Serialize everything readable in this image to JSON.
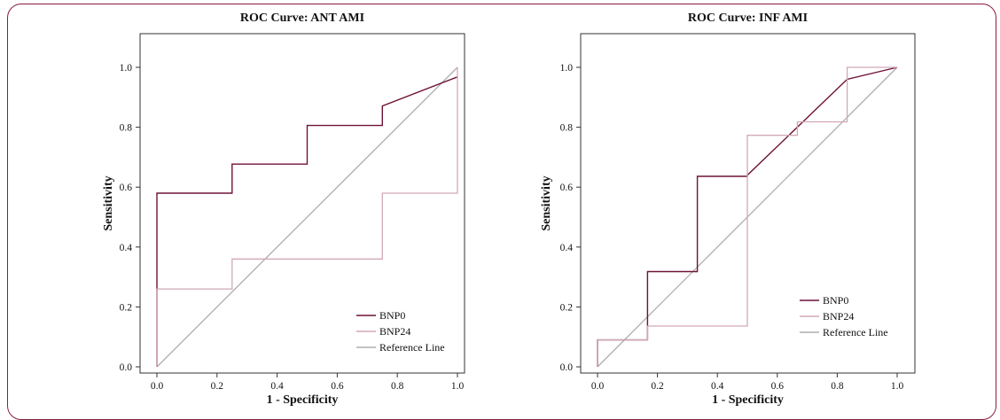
{
  "colors": {
    "frame": "#8b1d3f",
    "bnp0": "#6e1238",
    "bnp24": "#d2a9b7",
    "reference": "#adadad",
    "axis": "#333333"
  },
  "chart_data": [
    {
      "type": "line",
      "title": "ROC Curve: ANT AMI",
      "xlabel": "1 - Specificity",
      "ylabel": "Sensitivity",
      "xlim": [
        0,
        1
      ],
      "ylim": [
        0,
        1
      ],
      "xticks": [
        "0.0",
        "0.2",
        "0.4",
        "0.6",
        "0.8",
        "1.0"
      ],
      "yticks": [
        "0.0",
        "0.2",
        "0.4",
        "0.6",
        "0.8",
        "1.0"
      ],
      "grid": false,
      "legend_position": "bottom-right",
      "series": [
        {
          "name": "BNP0",
          "color_key": "bnp0",
          "x": [
            0,
            0,
            0.25,
            0.25,
            0.5,
            0.5,
            0.75,
            0.75,
            1.0
          ],
          "y": [
            0,
            0.58,
            0.58,
            0.677,
            0.677,
            0.806,
            0.806,
            0.871,
            0.968
          ]
        },
        {
          "name": "BNP24",
          "color_key": "bnp24",
          "x": [
            0,
            0,
            0.25,
            0.25,
            0.75,
            0.75,
            1.0,
            1.0
          ],
          "y": [
            0,
            0.26,
            0.26,
            0.36,
            0.36,
            0.58,
            0.58,
            1.0
          ]
        },
        {
          "name": "Reference Line",
          "color_key": "reference",
          "x": [
            0,
            1
          ],
          "y": [
            0,
            1
          ]
        }
      ]
    },
    {
      "type": "line",
      "title": "ROC Curve: INF AMI",
      "xlabel": "1 - Specificity",
      "ylabel": "Sensitivity",
      "xlim": [
        0,
        1
      ],
      "ylim": [
        0,
        1
      ],
      "xticks": [
        "0.0",
        "0.2",
        "0.4",
        "0.6",
        "0.8",
        "1.0"
      ],
      "yticks": [
        "0.0",
        "0.2",
        "0.4",
        "0.6",
        "0.8",
        "1.0"
      ],
      "grid": false,
      "legend_position": "bottom-right",
      "series": [
        {
          "name": "BNP0",
          "color_key": "bnp0",
          "x": [
            0,
            0,
            0.167,
            0.167,
            0.333,
            0.333,
            0.5,
            0.5,
            0.833,
            0.833,
            1.0
          ],
          "y": [
            0,
            0.09,
            0.09,
            0.318,
            0.318,
            0.636,
            0.636,
            0.64,
            0.96,
            0.96,
            1.0
          ]
        },
        {
          "name": "BNP24",
          "color_key": "bnp24",
          "x": [
            0,
            0,
            0.167,
            0.167,
            0.5,
            0.5,
            0.667,
            0.667,
            0.833,
            0.833,
            1.0
          ],
          "y": [
            0,
            0.09,
            0.09,
            0.136,
            0.136,
            0.773,
            0.773,
            0.818,
            0.818,
            1.0,
            1.0
          ]
        },
        {
          "name": "Reference Line",
          "color_key": "reference",
          "x": [
            0,
            1
          ],
          "y": [
            0,
            1
          ]
        }
      ]
    }
  ]
}
